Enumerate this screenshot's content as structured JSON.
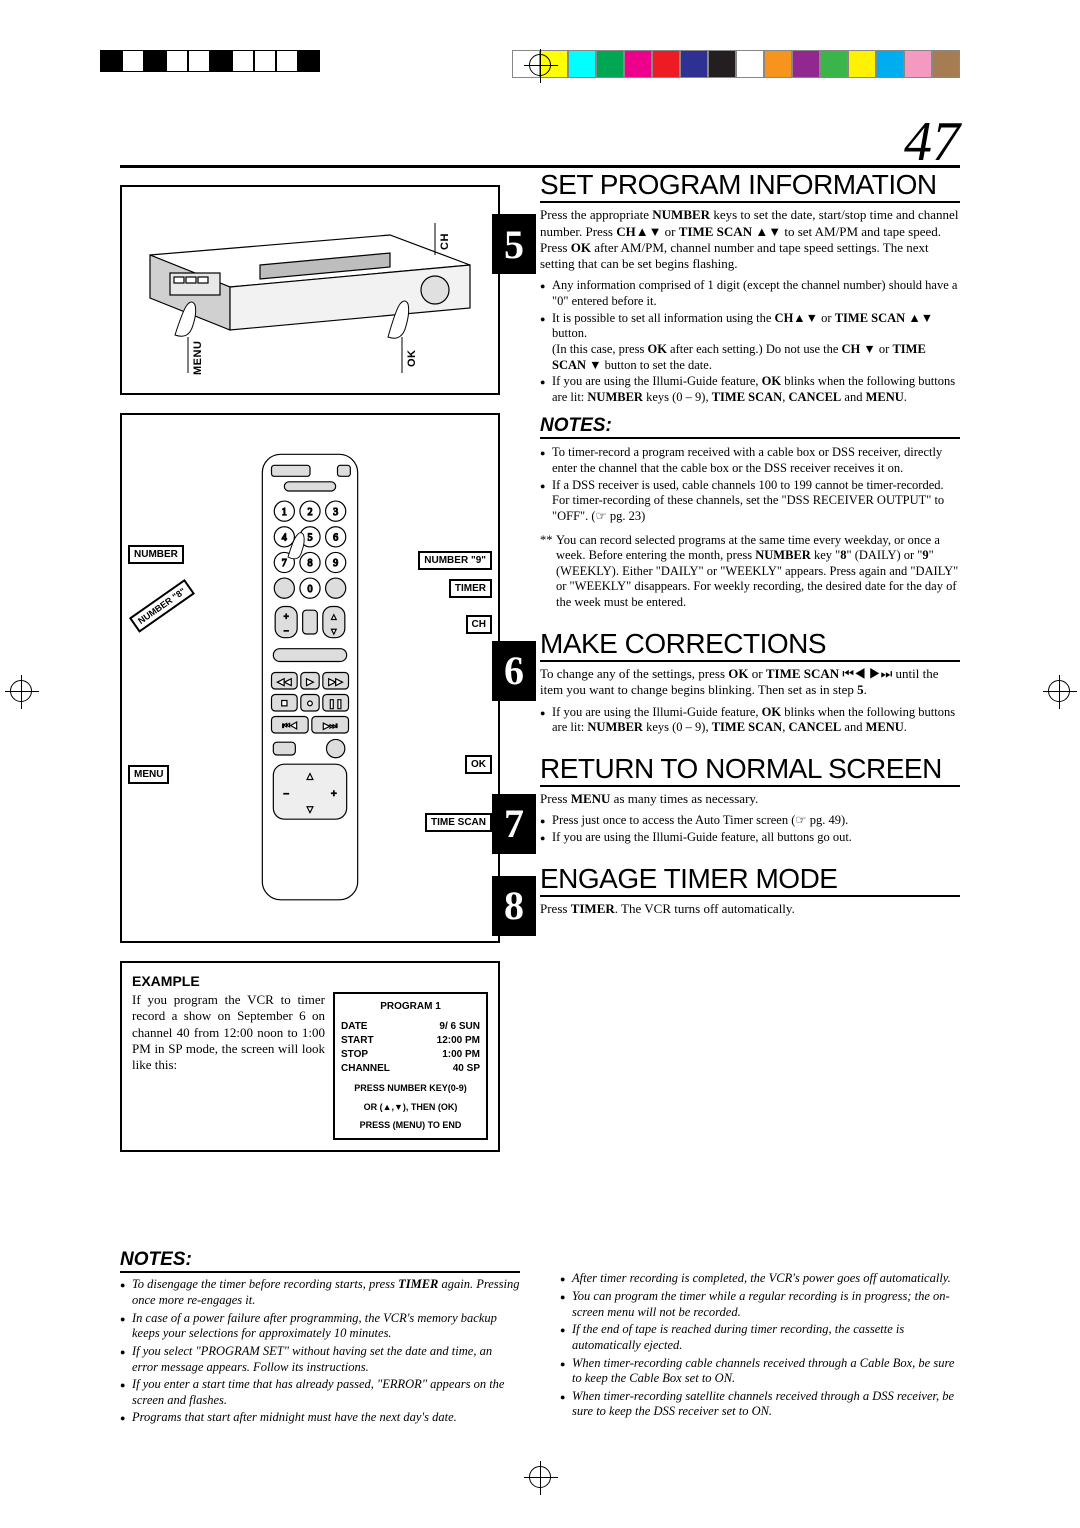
{
  "page_number": "47",
  "colorbar": [
    "#ffffff",
    "#ffff00",
    "#00ffff",
    "#00a651",
    "#ec008c",
    "#ed1c24",
    "#2e3192",
    "#231f20",
    "#ffffff",
    "#f7941d",
    "#92278f",
    "#39b54a",
    "#fff200",
    "#00aeef",
    "#f49ac1",
    "#a67c52"
  ],
  "labels": {
    "ch": "CH",
    "ok": "OK",
    "menu": "MENU",
    "number": "NUMBER",
    "number9": "NUMBER \"9\"",
    "number8": "NUMBER \"8\"",
    "timer": "TIMER",
    "timescan": "TIME SCAN"
  },
  "example": {
    "heading": "EXAMPLE",
    "text": "If you program the VCR to timer record a show on September 6 on channel 40 from 12:00 noon to 1:00 PM in SP mode, the screen will look like this:",
    "osd_title": "PROGRAM 1",
    "rows": [
      [
        "DATE",
        "9/ 6 SUN"
      ],
      [
        "START",
        "12:00 PM"
      ],
      [
        "STOP",
        "1:00 PM"
      ],
      [
        "CHANNEL",
        "40 SP"
      ]
    ],
    "foot1": "PRESS NUMBER KEY(0-9)",
    "foot2": "OR (▲,▼), THEN (OK)",
    "foot3": "PRESS (MENU) TO END"
  },
  "step5": {
    "title": "SET PROGRAM INFORMATION",
    "body": "Press the appropriate <b>NUMBER</b> keys to set the date, start/stop time and channel number. Press <b>CH</b>▲▼ or <b>TIME SCAN</b> ▲▼ to set AM/PM and tape speed. Press <b>OK</b> after AM/PM, channel number and tape speed settings. The next setting that can be set begins flashing.",
    "bullets": [
      "Any information comprised of 1 digit (except the channel number) should have a \"0\" entered before it.",
      "It is possible to set all information using the <b>CH</b>▲▼ or <b>TIME SCAN</b> ▲▼ button.<br>(In this case, press <b>OK</b> after each setting.) Do not use the <b>CH</b> ▼ or <b>TIME SCAN</b> ▼ button to set the date.",
      "If you are using the Illumi-Guide feature, <b>OK</b> blinks when the following buttons are lit: <b>NUMBER</b> keys (0 – 9), <b>TIME SCAN</b>, <b>CANCEL</b> and <b>MENU</b>."
    ]
  },
  "notes1_h": "NOTES:",
  "notes1": [
    "To timer-record a program received with a cable box or DSS receiver, directly enter the channel that the cable box or the DSS receiver receives it on.",
    "If a DSS receiver is used, cable channels 100 to 199 cannot be timer-recorded. For timer-recording of these channels, set the \"DSS RECEIVER OUTPUT\" to \"OFF\". (☞ pg. 23)"
  ],
  "stars": "You can record selected programs at the same time every weekday, or once a week. Before entering the month, press <b>NUMBER</b> key \"<b>8</b>\" (DAILY) or \"<b>9</b>\" (WEEKLY). Either \"DAILY\" or \"WEEKLY\" appears. Press again and \"DAILY\" or \"WEEKLY\" disappears. For weekly recording, the desired date for the day of the week must be entered.",
  "step6": {
    "title": "MAKE CORRECTIONS",
    "body": "To change any of the settings, press <b>OK</b> or <b>TIME SCAN</b> ⏮◀ ▶⏭ until the item you want to change begins blinking. Then set as in step <b>5</b>.",
    "bullets": [
      "If you are using the Illumi-Guide feature, <b>OK</b> blinks when the following buttons are lit: <b>NUMBER</b> keys (0 – 9), <b>TIME SCAN</b>, <b>CANCEL</b> and <b>MENU</b>."
    ]
  },
  "step7": {
    "title": "RETURN TO NORMAL SCREEN",
    "body": "Press <b>MENU</b> as many times as necessary.",
    "bullets": [
      "Press just once to access the Auto Timer screen (☞ pg. 49).",
      "If you are using the Illumi-Guide feature, all buttons go out."
    ]
  },
  "step8": {
    "title": "ENGAGE TIMER MODE",
    "body": "Press <b>TIMER</b>. The VCR turns off automatically."
  },
  "bottom_notes_h": "NOTES:",
  "bottom_left": [
    "To disengage the timer before recording starts, press <b>TIMER</b> again. Pressing once more re-engages it.",
    "In case of a power failure after programming, the VCR's memory backup keeps your selections for approximately 10 minutes.",
    "If you select \"PROGRAM SET\" without having set the date and time, an error message appears. Follow its instructions.",
    "If you enter a start time that has already passed, \"ERROR\" appears on the screen and flashes.",
    "Programs that start after midnight must have the next day's date."
  ],
  "bottom_right": [
    "After timer recording is completed, the VCR's power goes off automatically.",
    "You can program the timer while a regular recording is in progress; the on-screen menu will not be recorded.",
    "If the end of tape is reached during timer recording, the cassette is automatically ejected.",
    "When timer-recording cable channels received through a Cable Box, be sure to keep the Cable Box set to ON.",
    "When timer-recording satellite channels received through a DSS receiver, be sure to keep the DSS receiver set to ON."
  ]
}
